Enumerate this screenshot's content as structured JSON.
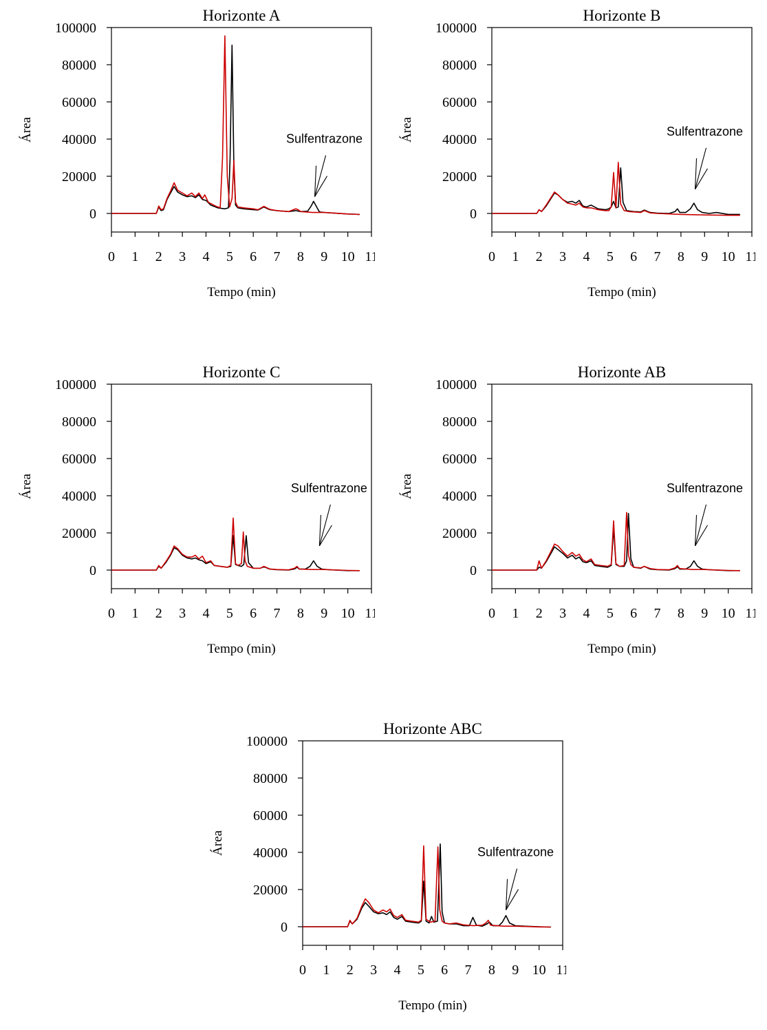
{
  "chart_data": [
    {
      "type": "line",
      "title": "Horizonte A",
      "xlabel": "Tempo (min)",
      "ylabel": "Área",
      "xlim": [
        0,
        11
      ],
      "ylim": [
        -10000,
        100000
      ],
      "xticks": [
        0,
        1,
        2,
        3,
        4,
        5,
        6,
        7,
        8,
        9,
        10,
        11
      ],
      "yticks": [
        0,
        20000,
        40000,
        60000,
        80000,
        100000
      ],
      "annotation": {
        "label": "Sulfentrazone",
        "x": 8.6,
        "y": 9000
      },
      "series": [
        {
          "color": "#000000",
          "x": [
            0,
            1.9,
            2.0,
            2.1,
            2.2,
            2.35,
            2.5,
            2.65,
            2.8,
            3.0,
            3.2,
            3.4,
            3.55,
            3.7,
            3.85,
            4.0,
            4.2,
            4.5,
            4.8,
            4.95,
            5.02,
            5.1,
            5.18,
            5.25,
            5.35,
            5.6,
            6.0,
            6.2,
            6.45,
            6.7,
            7.0,
            7.5,
            7.8,
            8.0,
            8.3,
            8.45,
            8.55,
            8.68,
            8.8,
            9.0,
            10.0,
            10.5
          ],
          "y": [
            0,
            0,
            3500,
            1500,
            2000,
            7500,
            11000,
            14500,
            11500,
            10000,
            9000,
            9500,
            8500,
            10000,
            7500,
            7000,
            4500,
            3000,
            2500,
            3000,
            30000,
            90500,
            25000,
            4500,
            3000,
            2500,
            2000,
            1800,
            3500,
            2000,
            1500,
            1000,
            1500,
            1000,
            1200,
            4000,
            6500,
            3500,
            800,
            500,
            -300,
            -500
          ]
        },
        {
          "color": "#cc0000",
          "x": [
            0,
            1.9,
            2.0,
            2.1,
            2.2,
            2.35,
            2.5,
            2.65,
            2.8,
            3.0,
            3.2,
            3.4,
            3.55,
            3.7,
            3.85,
            3.95,
            4.1,
            4.4,
            4.6,
            4.7,
            4.8,
            4.9,
            5.0,
            5.1,
            5.18,
            5.25,
            5.35,
            5.6,
            6.0,
            6.2,
            6.45,
            6.7,
            7.0,
            7.5,
            7.8,
            7.9,
            8.0,
            8.5,
            9.0,
            10.0,
            10.5
          ],
          "y": [
            0,
            0,
            4000,
            2000,
            2500,
            8000,
            12000,
            16500,
            12500,
            11000,
            9500,
            11000,
            9000,
            11000,
            8000,
            10000,
            6000,
            4000,
            3000,
            30000,
            95500,
            20000,
            3500,
            8000,
            28500,
            6000,
            3500,
            3000,
            2500,
            2000,
            3800,
            2200,
            1500,
            1000,
            2500,
            2000,
            1000,
            500,
            500,
            -300,
            -500
          ]
        }
      ]
    },
    {
      "type": "line",
      "title": "Horizonte B",
      "xlabel": "Tempo (min)",
      "ylabel": "Área",
      "xlim": [
        0,
        11
      ],
      "ylim": [
        -10000,
        100000
      ],
      "xticks": [
        0,
        1,
        2,
        3,
        4,
        5,
        6,
        7,
        8,
        9,
        10,
        11
      ],
      "yticks": [
        0,
        20000,
        40000,
        60000,
        80000,
        100000
      ],
      "annotation": {
        "label": "Sulfentrazone",
        "x": 8.6,
        "y": 13000
      },
      "series": [
        {
          "color": "#000000",
          "x": [
            0,
            1.9,
            2.0,
            2.1,
            2.3,
            2.5,
            2.65,
            2.8,
            3.0,
            3.2,
            3.4,
            3.55,
            3.7,
            3.85,
            4.0,
            4.2,
            4.5,
            4.8,
            4.95,
            5.05,
            5.15,
            5.25,
            5.35,
            5.45,
            5.55,
            5.7,
            6.0,
            6.3,
            6.45,
            6.7,
            7.0,
            7.5,
            7.75,
            7.85,
            7.95,
            8.2,
            8.4,
            8.55,
            8.7,
            8.9,
            9.2,
            9.5,
            10.0,
            10.5
          ],
          "y": [
            0,
            0,
            2000,
            1000,
            4000,
            8000,
            11000,
            10000,
            7500,
            6000,
            6500,
            5500,
            7000,
            4000,
            3500,
            4500,
            2500,
            2000,
            2500,
            3500,
            6500,
            3000,
            3500,
            24500,
            6000,
            1500,
            1000,
            800,
            1800,
            500,
            200,
            0,
            1000,
            2500,
            500,
            500,
            2500,
            5500,
            2000,
            500,
            0,
            500,
            -500,
            -500
          ]
        },
        {
          "color": "#cc0000",
          "x": [
            0,
            1.9,
            2.0,
            2.1,
            2.3,
            2.5,
            2.65,
            2.8,
            3.0,
            3.2,
            3.4,
            3.55,
            3.7,
            3.85,
            4.0,
            4.2,
            4.5,
            4.8,
            4.95,
            5.05,
            5.15,
            5.25,
            5.35,
            5.45,
            5.6,
            5.8,
            6.0,
            6.3,
            6.45,
            6.7,
            7.0,
            8.0,
            9.0,
            10.0,
            10.5
          ],
          "y": [
            0,
            0,
            2000,
            1000,
            4500,
            8500,
            11500,
            10000,
            7500,
            5500,
            5000,
            4500,
            5500,
            3500,
            3000,
            3000,
            2000,
            1500,
            1500,
            3500,
            22000,
            3000,
            27500,
            5000,
            1500,
            1000,
            800,
            500,
            1500,
            300,
            0,
            -500,
            -800,
            -1000,
            -1000
          ]
        }
      ]
    },
    {
      "type": "line",
      "title": "Horizonte C",
      "xlabel": "Tempo (min)",
      "ylabel": "Área",
      "xlim": [
        0,
        11
      ],
      "ylim": [
        -10000,
        100000
      ],
      "xticks": [
        0,
        1,
        2,
        3,
        4,
        5,
        6,
        7,
        8,
        9,
        10,
        11
      ],
      "yticks": [
        0,
        20000,
        40000,
        60000,
        80000,
        100000
      ],
      "annotation": {
        "label": "Sulfentrazone",
        "x": 8.8,
        "y": 13000
      },
      "series": [
        {
          "color": "#000000",
          "x": [
            0,
            1.9,
            2.0,
            2.1,
            2.3,
            2.5,
            2.65,
            2.8,
            3.0,
            3.2,
            3.4,
            3.55,
            3.7,
            3.85,
            4.0,
            4.2,
            4.35,
            4.6,
            4.9,
            5.05,
            5.15,
            5.25,
            5.35,
            5.5,
            5.6,
            5.7,
            5.8,
            6.0,
            6.3,
            6.45,
            6.7,
            7.0,
            7.5,
            7.75,
            7.85,
            7.95,
            8.2,
            8.4,
            8.55,
            8.7,
            8.9,
            9.2,
            10.0,
            10.5
          ],
          "y": [
            0,
            0,
            2000,
            1000,
            4000,
            8000,
            12000,
            11000,
            8000,
            6500,
            6000,
            6500,
            5500,
            5000,
            3500,
            4500,
            2500,
            2000,
            1500,
            2000,
            18500,
            3000,
            2500,
            2000,
            3000,
            18500,
            4000,
            1000,
            1000,
            1800,
            500,
            200,
            0,
            600,
            1500,
            500,
            500,
            2000,
            5000,
            2000,
            500,
            200,
            -300,
            -300
          ]
        },
        {
          "color": "#cc0000",
          "x": [
            0,
            1.9,
            2.0,
            2.1,
            2.3,
            2.5,
            2.65,
            2.8,
            3.0,
            3.2,
            3.4,
            3.55,
            3.7,
            3.85,
            4.0,
            4.2,
            4.35,
            4.6,
            4.9,
            5.05,
            5.15,
            5.25,
            5.35,
            5.5,
            5.58,
            5.65,
            5.75,
            6.0,
            6.3,
            6.45,
            6.7,
            7.0,
            7.5,
            7.75,
            7.85,
            7.95,
            8.5,
            9.0,
            10.0,
            10.5
          ],
          "y": [
            0,
            0,
            2500,
            1000,
            4500,
            8500,
            13000,
            11500,
            8500,
            7000,
            7000,
            8000,
            6000,
            7500,
            4000,
            5000,
            2500,
            2000,
            1500,
            2500,
            28000,
            3500,
            2500,
            3500,
            20500,
            5000,
            2000,
            1000,
            1000,
            2000,
            600,
            300,
            100,
            1000,
            2000,
            500,
            300,
            300,
            -200,
            -300
          ]
        }
      ]
    },
    {
      "type": "line",
      "title": "Horizonte AB",
      "xlabel": "Tempo (min)",
      "ylabel": "Área",
      "xlim": [
        0,
        11
      ],
      "ylim": [
        -10000,
        100000
      ],
      "xticks": [
        0,
        1,
        2,
        3,
        4,
        5,
        6,
        7,
        8,
        9,
        10,
        11
      ],
      "yticks": [
        0,
        20000,
        40000,
        60000,
        80000,
        100000
      ],
      "annotation": {
        "label": "Sulfentrazone",
        "x": 8.6,
        "y": 13000
      },
      "series": [
        {
          "color": "#000000",
          "x": [
            0,
            1.9,
            2.0,
            2.1,
            2.3,
            2.5,
            2.65,
            2.8,
            3.0,
            3.2,
            3.4,
            3.55,
            3.7,
            3.85,
            4.0,
            4.2,
            4.35,
            4.6,
            4.9,
            5.05,
            5.15,
            5.25,
            5.4,
            5.6,
            5.7,
            5.78,
            5.88,
            6.0,
            6.3,
            6.45,
            6.7,
            7.0,
            7.5,
            7.75,
            7.85,
            7.95,
            8.2,
            8.4,
            8.55,
            8.7,
            8.9,
            9.2,
            10.0,
            10.5
          ],
          "y": [
            0,
            0,
            1500,
            1000,
            4500,
            9000,
            12500,
            11000,
            9000,
            6500,
            8000,
            6000,
            7000,
            4500,
            4000,
            5000,
            2500,
            2000,
            1500,
            2500,
            22500,
            3000,
            2000,
            2000,
            5000,
            30500,
            6000,
            1500,
            1000,
            2000,
            500,
            200,
            0,
            800,
            1800,
            500,
            500,
            2000,
            5000,
            2000,
            500,
            200,
            -300,
            -300
          ]
        },
        {
          "color": "#cc0000",
          "x": [
            0,
            1.9,
            2.0,
            2.1,
            2.3,
            2.5,
            2.65,
            2.8,
            3.0,
            3.2,
            3.4,
            3.55,
            3.7,
            3.85,
            4.0,
            4.2,
            4.35,
            4.6,
            4.9,
            5.05,
            5.15,
            5.25,
            5.4,
            5.6,
            5.7,
            5.78,
            5.88,
            6.0,
            6.3,
            6.45,
            6.7,
            7.0,
            7.5,
            7.75,
            7.85,
            7.95,
            8.5,
            9.0,
            10.0,
            10.5
          ],
          "y": [
            0,
            0,
            5000,
            1000,
            5000,
            10000,
            14000,
            13000,
            10000,
            7500,
            9500,
            7500,
            8500,
            5500,
            4500,
            6000,
            3000,
            2500,
            2000,
            3000,
            26500,
            3500,
            2000,
            2500,
            31000,
            8000,
            3000,
            1500,
            1200,
            2000,
            800,
            300,
            200,
            1200,
            2500,
            800,
            300,
            300,
            -200,
            -300
          ]
        }
      ]
    },
    {
      "type": "line",
      "title": "Horizonte ABC",
      "xlabel": "Tempo (min)",
      "ylabel": "Área",
      "xlim": [
        0,
        11
      ],
      "ylim": [
        -10000,
        100000
      ],
      "xticks": [
        0,
        1,
        2,
        3,
        4,
        5,
        6,
        7,
        8,
        9,
        10,
        11
      ],
      "yticks": [
        0,
        20000,
        40000,
        60000,
        80000,
        100000
      ],
      "annotation": {
        "label": "Sulfentrazone",
        "x": 8.6,
        "y": 9000
      },
      "series": [
        {
          "color": "#000000",
          "x": [
            0,
            1.9,
            2.0,
            2.1,
            2.3,
            2.5,
            2.65,
            2.8,
            3.0,
            3.2,
            3.4,
            3.55,
            3.7,
            3.85,
            4.0,
            4.2,
            4.35,
            4.6,
            4.9,
            5.02,
            5.12,
            5.22,
            5.35,
            5.45,
            5.55,
            5.7,
            5.82,
            5.9,
            6.0,
            6.2,
            6.5,
            6.8,
            7.05,
            7.2,
            7.35,
            7.6,
            7.8,
            7.9,
            8.05,
            8.3,
            8.45,
            8.6,
            8.75,
            9.0,
            10.0,
            10.5
          ],
          "y": [
            0,
            0,
            3000,
            1500,
            4000,
            10000,
            13000,
            11000,
            8000,
            7000,
            7500,
            6500,
            8000,
            5000,
            4000,
            5500,
            3000,
            2500,
            2000,
            3000,
            24500,
            3000,
            2000,
            5500,
            2500,
            3000,
            44500,
            8000,
            2000,
            1500,
            1500,
            500,
            500,
            5000,
            800,
            300,
            1500,
            2500,
            500,
            500,
            2500,
            6000,
            2000,
            500,
            0,
            -200
          ]
        },
        {
          "color": "#cc0000",
          "x": [
            0,
            1.9,
            2.0,
            2.1,
            2.3,
            2.5,
            2.65,
            2.8,
            3.0,
            3.2,
            3.4,
            3.55,
            3.7,
            3.85,
            4.0,
            4.2,
            4.35,
            4.6,
            4.9,
            5.02,
            5.12,
            5.22,
            5.4,
            5.6,
            5.72,
            5.8,
            5.9,
            6.0,
            6.2,
            6.5,
            6.8,
            7.2,
            7.6,
            7.75,
            7.85,
            7.95,
            8.5,
            9.0,
            10.0,
            10.5
          ],
          "y": [
            0,
            0,
            3500,
            1500,
            4500,
            11000,
            15000,
            13000,
            9000,
            7500,
            9000,
            8000,
            9500,
            6000,
            5000,
            6500,
            3500,
            3000,
            2500,
            3500,
            43500,
            4000,
            2500,
            3000,
            43000,
            9000,
            3000,
            2000,
            1500,
            2000,
            1000,
            600,
            800,
            2000,
            3500,
            800,
            300,
            300,
            -100,
            -200
          ]
        }
      ]
    }
  ]
}
